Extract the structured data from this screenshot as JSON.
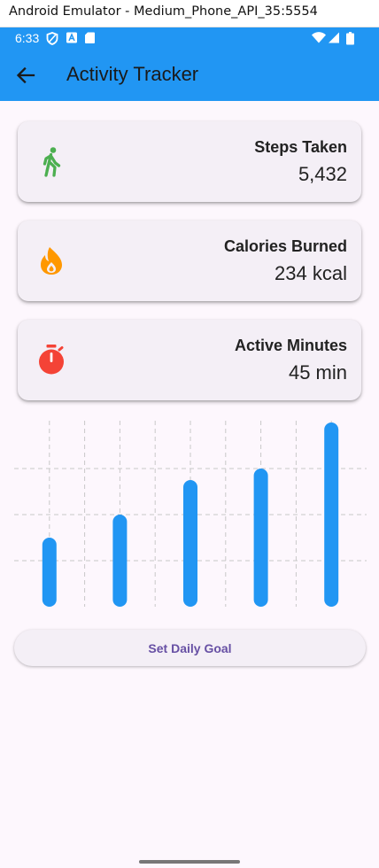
{
  "window": {
    "title": "Android Emulator - Medium_Phone_API_35:5554"
  },
  "status_bar": {
    "time": "6:33",
    "icons": [
      "shield-icon",
      "a-box-icon",
      "sd-card-icon",
      "wifi-icon",
      "signal-icon",
      "battery-icon"
    ]
  },
  "app_bar": {
    "title": "Activity Tracker",
    "back_icon": "arrow-back-icon"
  },
  "stats": [
    {
      "label": "Steps Taken",
      "value": "5,432",
      "icon": "walk-icon",
      "color": "#4caf50"
    },
    {
      "label": "Calories Burned",
      "value": "234 kcal",
      "icon": "fire-icon",
      "color": "#ff9800"
    },
    {
      "label": "Active Minutes",
      "value": "45 min",
      "icon": "timer-icon",
      "color": "#f44336"
    }
  ],
  "chart_data": {
    "type": "bar",
    "categories": [
      "",
      "",
      "",
      "",
      ""
    ],
    "values": [
      3,
      4,
      5.5,
      6,
      8
    ],
    "ylim": [
      0,
      8
    ],
    "grid": true,
    "bar_color": "#2196f3"
  },
  "actions": {
    "set_goal_label": "Set Daily Goal"
  },
  "colors": {
    "primary": "#2196f3",
    "background": "#fdf7fd",
    "card": "#f4eff6",
    "button_text": "#6750a4"
  }
}
